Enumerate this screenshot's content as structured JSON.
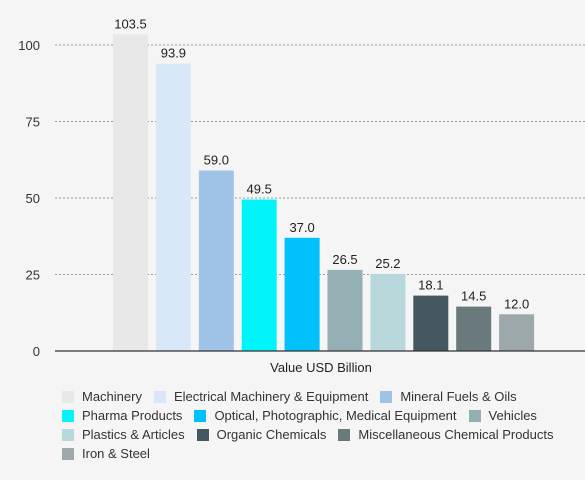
{
  "chart_data": {
    "type": "bar",
    "xlabel": "Value USD Billion",
    "ylabel": "",
    "ylim": [
      0,
      100
    ],
    "yticks": [
      "0",
      "25",
      "50",
      "75",
      "100"
    ],
    "grid": "horizontal dashed",
    "legend_placement": "bottom",
    "series": [
      {
        "name": "Machinery",
        "value": 103.5,
        "label": "103.5",
        "color": "#e8e8e8"
      },
      {
        "name": "Electrical Machinery & Equipment",
        "value": 93.9,
        "label": "93.9",
        "color": "#d9e8f8"
      },
      {
        "name": "Mineral Fuels & Oils",
        "value": 59.0,
        "label": "59.0",
        "color": "#9ec3e6"
      },
      {
        "name": "Pharma Products",
        "value": 49.5,
        "label": "49.5",
        "color": "#00f5fb"
      },
      {
        "name": "Optical, Photographic, Medical Equipment",
        "value": 37.0,
        "label": "37.0",
        "color": "#00c1fb"
      },
      {
        "name": "Vehicles",
        "value": 26.5,
        "label": "26.5",
        "color": "#94b0b4"
      },
      {
        "name": "Plastics & Articles",
        "value": 25.2,
        "label": "25.2",
        "color": "#b9d8dc"
      },
      {
        "name": "Organic Chemicals",
        "value": 18.1,
        "label": "18.1",
        "color": "#455760"
      },
      {
        "name": "Miscellaneous Chemical Products",
        "value": 14.5,
        "label": "14.5",
        "color": "#6a7a7c"
      },
      {
        "name": "Iron & Steel",
        "value": 12.0,
        "label": "12.0",
        "color": "#9ca8a9"
      }
    ]
  }
}
